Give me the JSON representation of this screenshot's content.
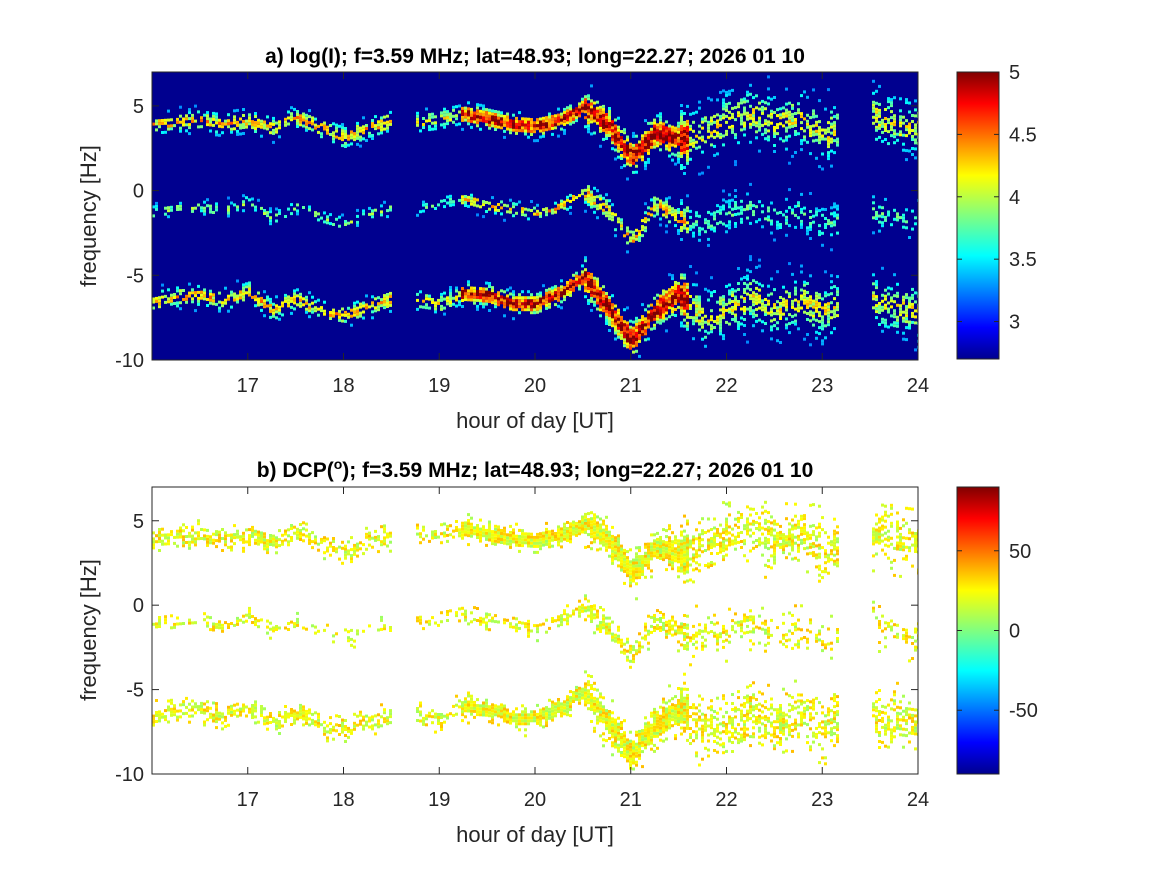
{
  "chart_data": [
    {
      "type": "heatmap",
      "title": "a) log(I); f=3.59 MHz;  lat=48.93; long=22.27; 2026 01 10",
      "xlabel": "hour of day [UT]",
      "ylabel": "frequency [Hz]",
      "xlim": [
        16,
        24
      ],
      "ylim": [
        -10,
        7
      ],
      "xticks": [
        "17",
        "18",
        "19",
        "20",
        "21",
        "22",
        "23",
        "24"
      ],
      "yticks": [
        "5",
        "0",
        "-5",
        "-10"
      ],
      "background": "#00008f",
      "colormap": "jet",
      "clim": [
        2.7,
        5
      ],
      "colorbar_ticks": [
        "5",
        "4.5",
        "4",
        "3.5",
        "3"
      ],
      "data_gaps": [
        [
          18.5,
          18.75
        ],
        [
          23.15,
          23.5
        ]
      ],
      "bands_center_hz": {
        "x": [
          16.0,
          16.25,
          16.5,
          16.75,
          17.0,
          17.25,
          17.5,
          17.75,
          18.0,
          18.25,
          18.5,
          18.75,
          19.0,
          19.25,
          19.5,
          19.75,
          20.0,
          20.25,
          20.5,
          20.75,
          21.0,
          21.25,
          21.5,
          21.75,
          22.0,
          22.25,
          22.5,
          22.75,
          23.0,
          23.25,
          23.5,
          23.75,
          24.0
        ],
        "upper": [
          4.0,
          4.1,
          4.2,
          4.0,
          4.2,
          3.8,
          4.4,
          3.8,
          3.2,
          3.8,
          4.2,
          4.1,
          4.3,
          4.6,
          4.3,
          4.0,
          3.9,
          4.2,
          5.0,
          4.0,
          2.0,
          3.5,
          3.0,
          3.5,
          4.2,
          4.6,
          4.0,
          4.4,
          3.3,
          4.0,
          4.5,
          4.0,
          3.8
        ],
        "middle": [
          -1.2,
          -1.0,
          -0.9,
          -1.1,
          -0.6,
          -1.6,
          -0.9,
          -1.5,
          -1.9,
          -1.3,
          -1.0,
          -1.0,
          -0.7,
          -0.4,
          -0.8,
          -1.0,
          -1.3,
          -0.9,
          0.0,
          -1.1,
          -3.0,
          -0.7,
          -1.6,
          -1.9,
          -1.3,
          -1.0,
          -1.5,
          -1.2,
          -2.0,
          -1.6,
          -1.2,
          -1.5,
          -1.8
        ],
        "lower": [
          -6.5,
          -6.2,
          -6.1,
          -6.4,
          -5.9,
          -7.0,
          -6.3,
          -7.0,
          -7.3,
          -6.8,
          -6.3,
          -6.4,
          -6.6,
          -6.0,
          -6.1,
          -6.6,
          -6.6,
          -6.0,
          -5.0,
          -6.8,
          -8.8,
          -7.0,
          -6.0,
          -7.5,
          -6.9,
          -6.2,
          -7.0,
          -6.4,
          -7.0,
          -6.5,
          -6.4,
          -6.8,
          -7.0
        ]
      }
    },
    {
      "type": "heatmap",
      "title": "b) DCP(",
      "title_superscript": "o",
      "title_suffix": "); f=3.59 MHz;  lat=48.93; long=22.27; 2026 01 10",
      "xlabel": "hour of day [UT]",
      "ylabel": "frequency [Hz]",
      "xlim": [
        16,
        24
      ],
      "ylim": [
        -10,
        7
      ],
      "xticks": [
        "17",
        "18",
        "19",
        "20",
        "21",
        "22",
        "23",
        "24"
      ],
      "yticks": [
        "5",
        "0",
        "-5",
        "-10"
      ],
      "background": "#ffffff",
      "colormap": "jet",
      "clim": [
        -90,
        90
      ],
      "colorbar_ticks": [
        "50",
        "0",
        "-50"
      ],
      "dominant_value": 20
    }
  ]
}
